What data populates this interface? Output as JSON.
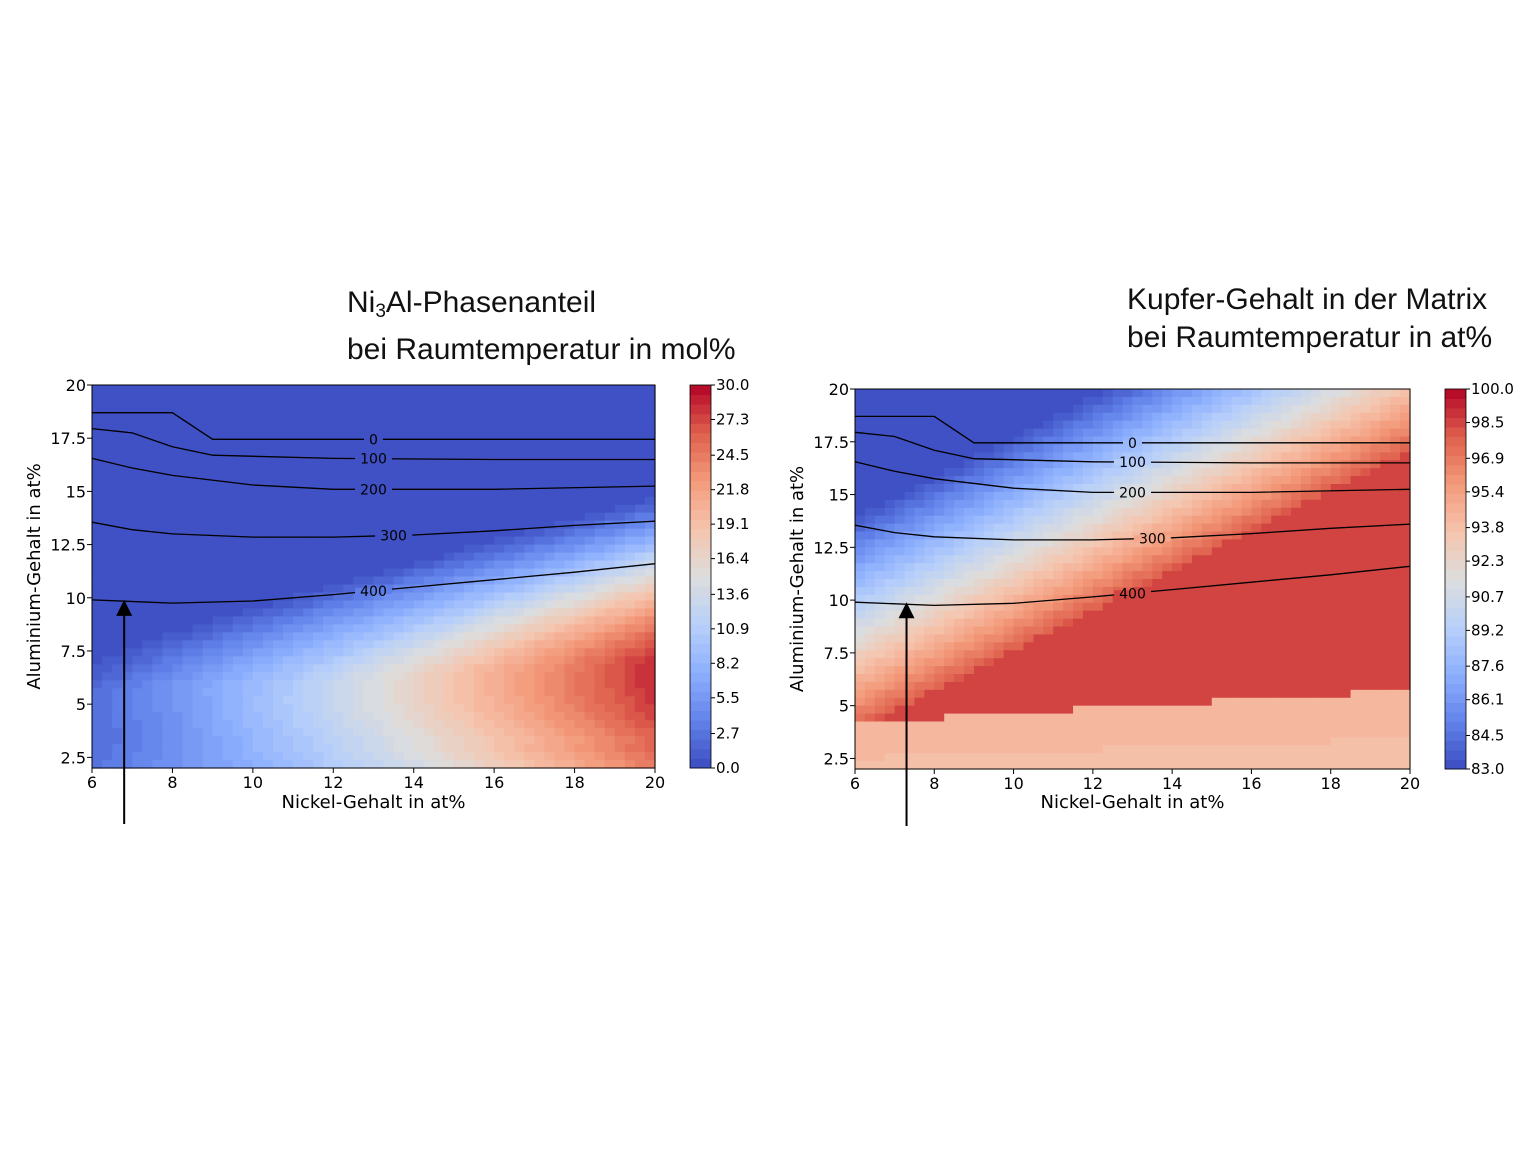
{
  "chart_data": [
    {
      "type": "heatmap",
      "title": {
        "formula_main": "Ni",
        "formula_sub": "3",
        "formula_rest": "Al-Phasenanteil",
        "line2": "bei Raumtemperatur in mol%"
      },
      "xlabel": "Nickel-Gehalt in at%",
      "ylabel": "Aluminium-Gehalt in at%",
      "xlim": [
        6,
        20
      ],
      "ylim": [
        2,
        20
      ],
      "xticks": [
        "6",
        "8",
        "10",
        "12",
        "14",
        "16",
        "18",
        "20"
      ],
      "yticks": [
        "2.5",
        "5",
        "7.5",
        "10",
        "12.5",
        "15",
        "17.5",
        "20"
      ],
      "colorscale": "coolwarm",
      "colorbar_ticks": [
        "0.0",
        "2.7",
        "5.5",
        "8.2",
        "10.9",
        "13.6",
        "16.4",
        "19.1",
        "21.8",
        "24.5",
        "27.3",
        "30.0"
      ],
      "colorbar_range": [
        0,
        30
      ],
      "contours": [
        {
          "label": "0",
          "points": [
            [
              6,
              18.7
            ],
            [
              8,
              18.7
            ],
            [
              9,
              17.45
            ],
            [
              12,
              17.45
            ],
            [
              16,
              17.45
            ],
            [
              20,
              17.45
            ]
          ]
        },
        {
          "label": "100",
          "points": [
            [
              6,
              17.95
            ],
            [
              7,
              17.75
            ],
            [
              8,
              17.1
            ],
            [
              9,
              16.7
            ],
            [
              12,
              16.55
            ],
            [
              16,
              16.5
            ],
            [
              20,
              16.5
            ]
          ]
        },
        {
          "label": "200",
          "points": [
            [
              6,
              16.55
            ],
            [
              7,
              16.1
            ],
            [
              8,
              15.75
            ],
            [
              10,
              15.3
            ],
            [
              12,
              15.1
            ],
            [
              16,
              15.1
            ],
            [
              20,
              15.25
            ]
          ]
        },
        {
          "label": "300",
          "points": [
            [
              6,
              13.55
            ],
            [
              7,
              13.2
            ],
            [
              8,
              13
            ],
            [
              10,
              12.85
            ],
            [
              12,
              12.85
            ],
            [
              14,
              12.95
            ],
            [
              16,
              13.15
            ],
            [
              18,
              13.4
            ],
            [
              20,
              13.6
            ]
          ]
        },
        {
          "label": "400",
          "points": [
            [
              6,
              9.9
            ],
            [
              8,
              9.75
            ],
            [
              10,
              9.85
            ],
            [
              12,
              10.15
            ],
            [
              14,
              10.5
            ],
            [
              16,
              10.85
            ],
            [
              18,
              11.2
            ],
            [
              20,
              11.6
            ]
          ]
        }
      ],
      "arrow": {
        "x": 6.8,
        "y_tip": 9.9
      }
    },
    {
      "type": "heatmap",
      "title": {
        "line1": "Kupfer-Gehalt in der Matrix",
        "line2": "bei Raumtemperatur in at%"
      },
      "xlabel": "Nickel-Gehalt in at%",
      "ylabel": "Aluminium-Gehalt in at%",
      "xlim": [
        6,
        20
      ],
      "ylim": [
        2,
        20
      ],
      "xticks": [
        "6",
        "8",
        "10",
        "12",
        "14",
        "16",
        "18",
        "20"
      ],
      "yticks": [
        "2.5",
        "5",
        "7.5",
        "10",
        "12.5",
        "15",
        "17.5",
        "20"
      ],
      "colorscale": "coolwarm",
      "colorbar_ticks": [
        "83.0",
        "84.5",
        "86.1",
        "87.6",
        "89.2",
        "90.7",
        "92.3",
        "93.8",
        "95.4",
        "96.9",
        "98.5",
        "100.0"
      ],
      "colorbar_range": [
        83,
        100
      ],
      "contours": [
        {
          "label": "0",
          "points": [
            [
              6,
              18.7
            ],
            [
              8,
              18.7
            ],
            [
              9,
              17.45
            ],
            [
              12,
              17.45
            ],
            [
              16,
              17.45
            ],
            [
              20,
              17.45
            ]
          ]
        },
        {
          "label": "100",
          "points": [
            [
              6,
              17.95
            ],
            [
              7,
              17.75
            ],
            [
              8,
              17.1
            ],
            [
              9,
              16.7
            ],
            [
              12,
              16.55
            ],
            [
              16,
              16.5
            ],
            [
              20,
              16.5
            ]
          ]
        },
        {
          "label": "200",
          "points": [
            [
              6,
              16.55
            ],
            [
              7,
              16.1
            ],
            [
              8,
              15.75
            ],
            [
              10,
              15.3
            ],
            [
              12,
              15.1
            ],
            [
              16,
              15.1
            ],
            [
              20,
              15.25
            ]
          ]
        },
        {
          "label": "300",
          "points": [
            [
              6,
              13.55
            ],
            [
              7,
              13.2
            ],
            [
              8,
              13
            ],
            [
              10,
              12.85
            ],
            [
              12,
              12.85
            ],
            [
              14,
              12.95
            ],
            [
              16,
              13.15
            ],
            [
              18,
              13.4
            ],
            [
              20,
              13.6
            ]
          ]
        },
        {
          "label": "400",
          "points": [
            [
              6,
              9.9
            ],
            [
              8,
              9.75
            ],
            [
              10,
              9.85
            ],
            [
              12,
              10.15
            ],
            [
              14,
              10.5
            ],
            [
              16,
              10.85
            ],
            [
              18,
              11.2
            ],
            [
              20,
              11.6
            ]
          ]
        }
      ],
      "arrow": {
        "x": 7.3,
        "y_tip": 9.9
      }
    }
  ]
}
